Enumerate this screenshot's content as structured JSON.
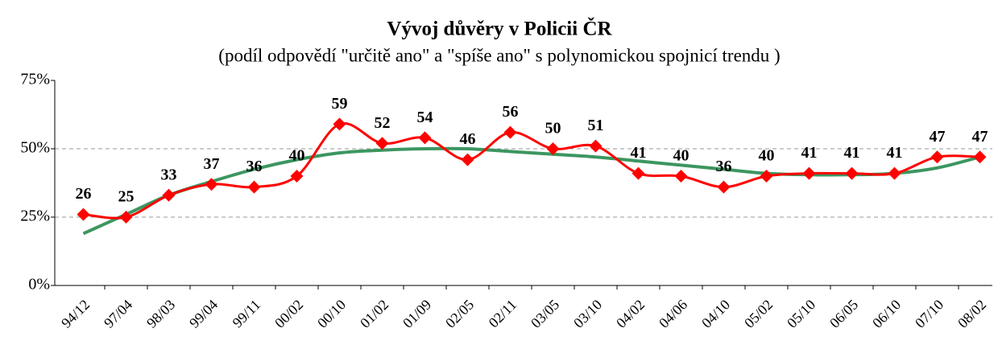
{
  "chart_data": {
    "type": "line",
    "title": "Vývoj důvěry v Policii ČR",
    "subtitle": "(podíl odpovědí \"určitě ano\" a \"spíše ano\" s polynomickou spojnicí trendu )",
    "categories": [
      "94/12",
      "97/04",
      "98/03",
      "99/04",
      "99/11",
      "00/02",
      "00/10",
      "01/02",
      "01/09",
      "02/05",
      "02/11",
      "03/05",
      "03/10",
      "04/02",
      "04/06",
      "04/10",
      "05/02",
      "05/10",
      "06/05",
      "06/10",
      "07/10",
      "08/02"
    ],
    "series": [
      {
        "color": "#ff0000",
        "marker": "diamond",
        "data_labels": true,
        "values": [
          26,
          25,
          33,
          37,
          36,
          40,
          59,
          52,
          54,
          46,
          56,
          50,
          51,
          41,
          40,
          36,
          40,
          41,
          41,
          41,
          47,
          47
        ]
      },
      {
        "color": "#3c9660",
        "marker": "none",
        "data_labels": false,
        "values": [
          19,
          26,
          33,
          38,
          42.5,
          46,
          48.5,
          49.5,
          50,
          50,
          49,
          48,
          47,
          45.5,
          44,
          42.5,
          41,
          40.5,
          40.5,
          41,
          43,
          47
        ]
      }
    ],
    "ylim": [
      0,
      75
    ],
    "yticks": [
      {
        "value": 0,
        "label": "0%"
      },
      {
        "value": 25,
        "label": "25%"
      },
      {
        "value": 50,
        "label": "50%"
      },
      {
        "value": 75,
        "label": "75%"
      }
    ],
    "grid": true,
    "smooth": true
  }
}
